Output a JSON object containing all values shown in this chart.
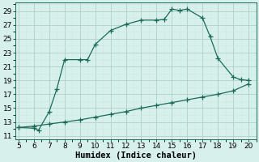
{
  "upper_x": [
    5,
    6,
    6.3,
    7,
    7.5,
    8,
    9,
    9.5,
    10,
    11,
    12,
    13,
    14,
    14.5,
    15,
    15.5,
    16,
    17,
    17.5,
    18,
    19,
    19.5,
    20
  ],
  "upper_y": [
    12.2,
    12.1,
    11.8,
    14.5,
    17.8,
    22.0,
    22.0,
    22.0,
    24.2,
    26.2,
    27.1,
    27.7,
    27.7,
    27.8,
    29.3,
    29.1,
    29.3,
    28.0,
    25.3,
    22.2,
    19.5,
    19.1,
    19.0
  ],
  "lower_x": [
    5,
    6,
    7,
    8,
    9,
    10,
    11,
    12,
    13,
    14,
    15,
    16,
    17,
    18,
    19,
    20
  ],
  "lower_y": [
    12.2,
    12.4,
    12.7,
    13.0,
    13.3,
    13.7,
    14.1,
    14.5,
    15.0,
    15.4,
    15.8,
    16.2,
    16.6,
    17.0,
    17.5,
    18.5
  ],
  "line_color": "#1a6b5a",
  "bg_color": "#d8f0ec",
  "grid_major_color": "#b0d0cc",
  "grid_minor_color": "#c8e8e4",
  "xlabel": "Humidex (Indice chaleur)",
  "xlim": [
    4.8,
    20.5
  ],
  "ylim": [
    10.5,
    30.2
  ],
  "xticks": [
    5,
    6,
    7,
    8,
    9,
    10,
    11,
    12,
    13,
    14,
    15,
    16,
    17,
    18,
    19,
    20
  ],
  "yticks": [
    11,
    13,
    15,
    17,
    19,
    21,
    23,
    25,
    27,
    29
  ],
  "tick_fontsize": 6.5,
  "xlabel_fontsize": 7.5,
  "marker_size": 4,
  "linewidth": 0.9
}
